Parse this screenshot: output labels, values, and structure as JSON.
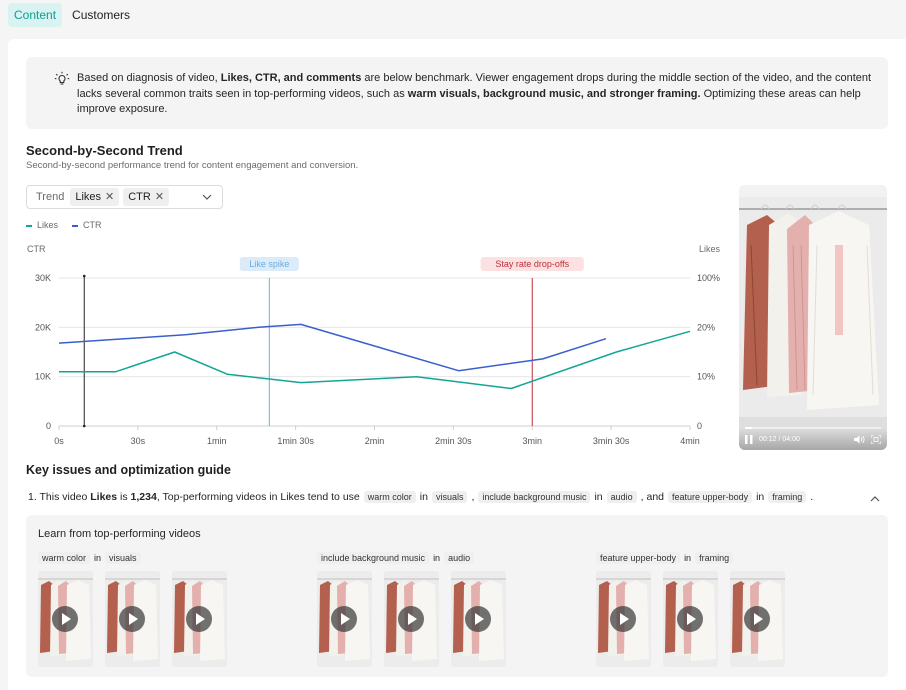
{
  "tabs": [
    {
      "label": "Content",
      "active": true
    },
    {
      "label": "Customers",
      "active": false
    }
  ],
  "diagnosis": {
    "p1": "Based on diagnosis of video, ",
    "b1": "Likes, CTR, and comments",
    "p2": " are below benchmark. Viewer engagement drops during the middle section of the video, and the content lacks several common traits seen in top-performing videos, such as ",
    "b2": "warm visuals, background music, and stronger framing.",
    "p3": " Optimizing these areas can help improve exposure."
  },
  "trend_section": {
    "title": "Second-by-Second Trend",
    "subtitle": "Second-by-second performance trend for content engagement and conversion.",
    "select_label": "Trend",
    "chips": [
      "Likes",
      "CTR"
    ]
  },
  "colors": {
    "accent": "#0e9e95",
    "likes": "#13a594",
    "ctr": "#3a5fcd",
    "spike": "#6aaee0",
    "dropoff": "#c0303a"
  },
  "chart_data": {
    "type": "line",
    "x_ticks": [
      "0s",
      "30s",
      "1min",
      "1min 30s",
      "2min",
      "2min 30s",
      "3min",
      "3min 30s",
      "4min"
    ],
    "left_axis": {
      "label": "CTR",
      "ticks": [
        "0",
        "10K",
        "20K",
        "30K"
      ],
      "range": [
        0,
        30000
      ]
    },
    "right_axis": {
      "label": "Likes",
      "ticks": [
        "0",
        "10%",
        "20%",
        "100%"
      ]
    },
    "legend": [
      "Likes",
      "CTR"
    ],
    "series": [
      {
        "name": "CTR",
        "color": "#3a5fcd",
        "points": [
          [
            0,
            16800
          ],
          [
            60,
            18500
          ],
          [
            95,
            20000
          ],
          [
            115,
            20600
          ],
          [
            190,
            11200
          ],
          [
            230,
            13600
          ],
          [
            260,
            17700
          ]
        ]
      },
      {
        "name": "Likes",
        "color": "#13a594",
        "points": [
          [
            0,
            11000
          ],
          [
            27,
            11000
          ],
          [
            55,
            15000
          ],
          [
            80,
            10500
          ],
          [
            115,
            8800
          ],
          [
            170,
            10000
          ],
          [
            215,
            7600
          ],
          [
            265,
            15000
          ],
          [
            300,
            19200
          ]
        ]
      }
    ],
    "x_domain_seconds": [
      0,
      300
    ],
    "annotations": [
      {
        "label": "Like spike",
        "x": 100
      },
      {
        "label": "Stay rate drop-offs",
        "x": 225
      }
    ],
    "cursor_x": 12
  },
  "video": {
    "time": "00:12 / 04:00",
    "progress": 0.05
  },
  "issues": {
    "title": "Key issues and optimization guide",
    "item1": {
      "prefix": "1. This video ",
      "metric": "Likes",
      "is": " is ",
      "value": "1,234",
      "mid": ", Top-performing videos in Likes tend to use",
      "tag1": "warm color",
      "in1": "in",
      "tag1b": "visuals",
      "comma": ",",
      "tag2": "include background music",
      "in2": "in",
      "tag2b": "audio",
      "and": ", and",
      "tag3": "feature upper-body",
      "in3": "in",
      "tag3b": "framing",
      "end": "."
    },
    "learn": {
      "title": "Learn from top-performing videos",
      "groups": [
        {
          "tag": "warm color",
          "in": "in",
          "tag2": "visuals"
        },
        {
          "tag": "include background music",
          "in": "in",
          "tag2": "audio"
        },
        {
          "tag": "feature upper-body",
          "in": "in",
          "tag2": "framing"
        }
      ]
    }
  }
}
